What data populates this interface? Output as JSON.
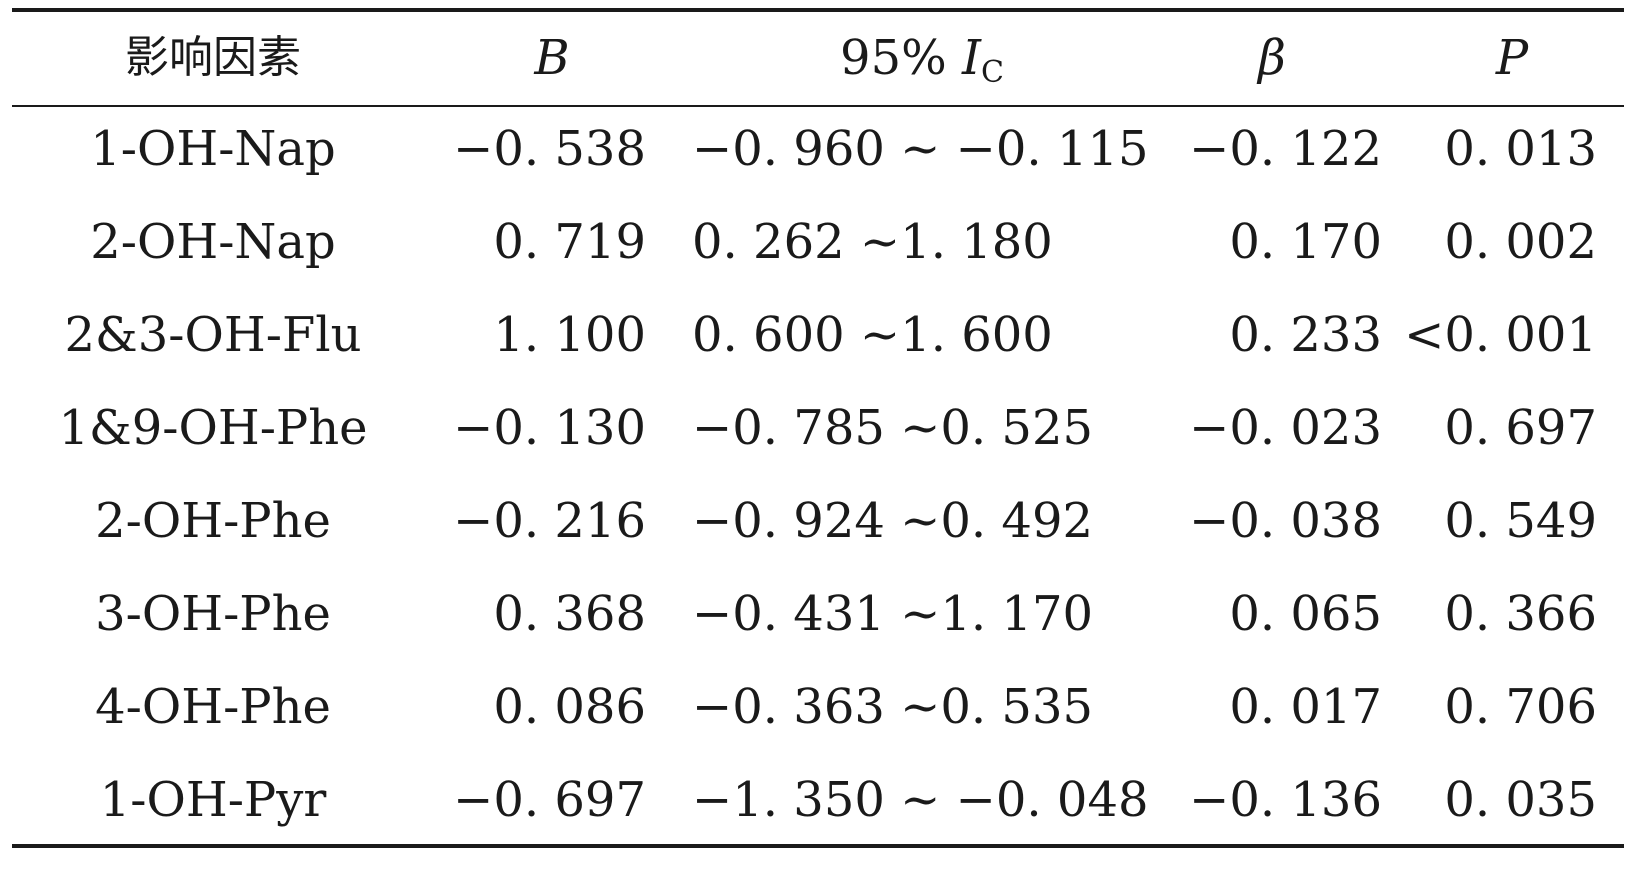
{
  "table": {
    "headers": {
      "factor": "影响因素",
      "b": "B",
      "ci_prefix": "95%",
      "ci_symbol": "I",
      "ci_subscript": "C",
      "beta": "β",
      "p": "P"
    },
    "rows": [
      {
        "factor": "1-OH-Nap",
        "b": "−0. 538",
        "ci": "−0. 960 ~ −0. 115",
        "beta": "−0. 122",
        "p": "0. 013"
      },
      {
        "factor": "2-OH-Nap",
        "b": "0. 719",
        "ci": "0. 262 ~1. 180",
        "beta": "0. 170",
        "p": "0. 002"
      },
      {
        "factor": "2&3-OH-Flu",
        "b": "1. 100",
        "ci": "0. 600 ~1. 600",
        "beta": "0. 233",
        "p": "<0. 001"
      },
      {
        "factor": "1&9-OH-Phe",
        "b": "−0. 130",
        "ci": "−0. 785 ~0. 525",
        "beta": "−0. 023",
        "p": "0. 697"
      },
      {
        "factor": "2-OH-Phe",
        "b": "−0. 216",
        "ci": "−0. 924 ~0. 492",
        "beta": "−0. 038",
        "p": "0. 549"
      },
      {
        "factor": "3-OH-Phe",
        "b": "0. 368",
        "ci": "−0. 431 ~1. 170",
        "beta": "0. 065",
        "p": "0. 366"
      },
      {
        "factor": "4-OH-Phe",
        "b": "0. 086",
        "ci": "−0. 363 ~0. 535",
        "beta": "0. 017",
        "p": "0. 706"
      },
      {
        "factor": "1-OH-Pyr",
        "b": "−0. 697",
        "ci": "−1. 350 ~ −0. 048",
        "beta": "−0. 136",
        "p": "0. 035"
      }
    ]
  }
}
